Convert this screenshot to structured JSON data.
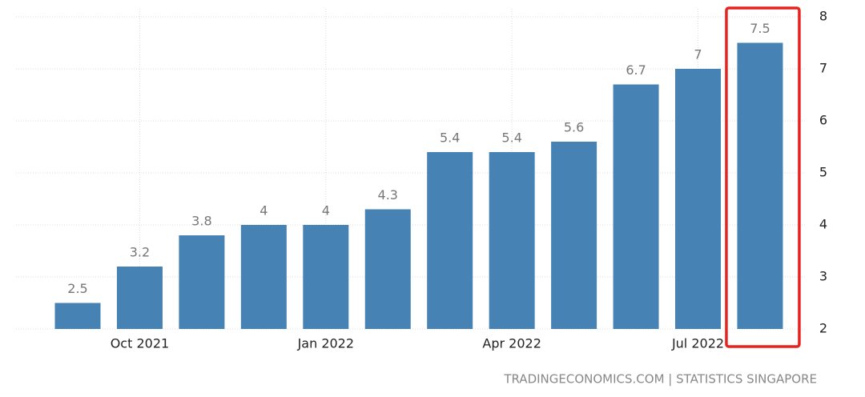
{
  "chart_data": {
    "type": "bar",
    "categories": [
      null,
      "Oct 2021",
      null,
      null,
      "Jan 2022",
      null,
      null,
      "Apr 2022",
      null,
      null,
      "Jul 2022",
      null
    ],
    "values": [
      2.5,
      3.2,
      3.8,
      4,
      4,
      4.3,
      5.4,
      5.4,
      5.6,
      6.7,
      7,
      7.5
    ],
    "color": "#4682b4",
    "ylim": [
      2,
      8
    ],
    "yticks": [
      2,
      3,
      4,
      5,
      6,
      7,
      8
    ],
    "grid": true,
    "source": "TRADINGECONOMICS.COM | STATISTICS SINGAPORE"
  }
}
